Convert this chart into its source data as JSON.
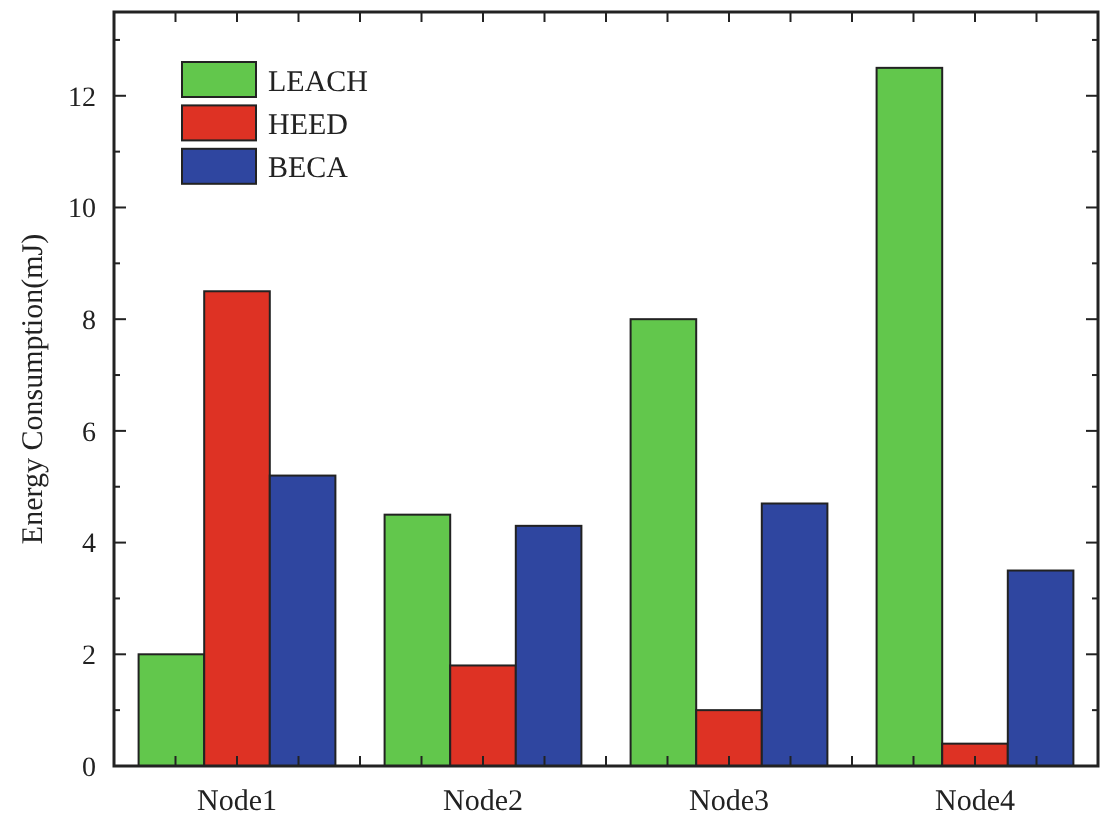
{
  "chart_data": {
    "type": "bar",
    "ylabel": "Energy Consumption(mJ)",
    "categories": [
      "Node1",
      "Node2",
      "Node3",
      "Node4"
    ],
    "series": [
      {
        "name": "LEACH",
        "color": "#62c74c",
        "values": [
          2,
          4.5,
          8,
          12.5
        ]
      },
      {
        "name": "HEED",
        "color": "#de3224",
        "values": [
          8.5,
          1.8,
          1,
          0.4
        ]
      },
      {
        "name": "BECA",
        "color": "#2f46a0",
        "values": [
          5.2,
          4.3,
          4.7,
          3.5
        ]
      }
    ],
    "ylim": [
      0,
      13.5
    ],
    "yticks": [
      0,
      2,
      4,
      6,
      8,
      10,
      12
    ],
    "grid": false,
    "legend": "top left"
  }
}
